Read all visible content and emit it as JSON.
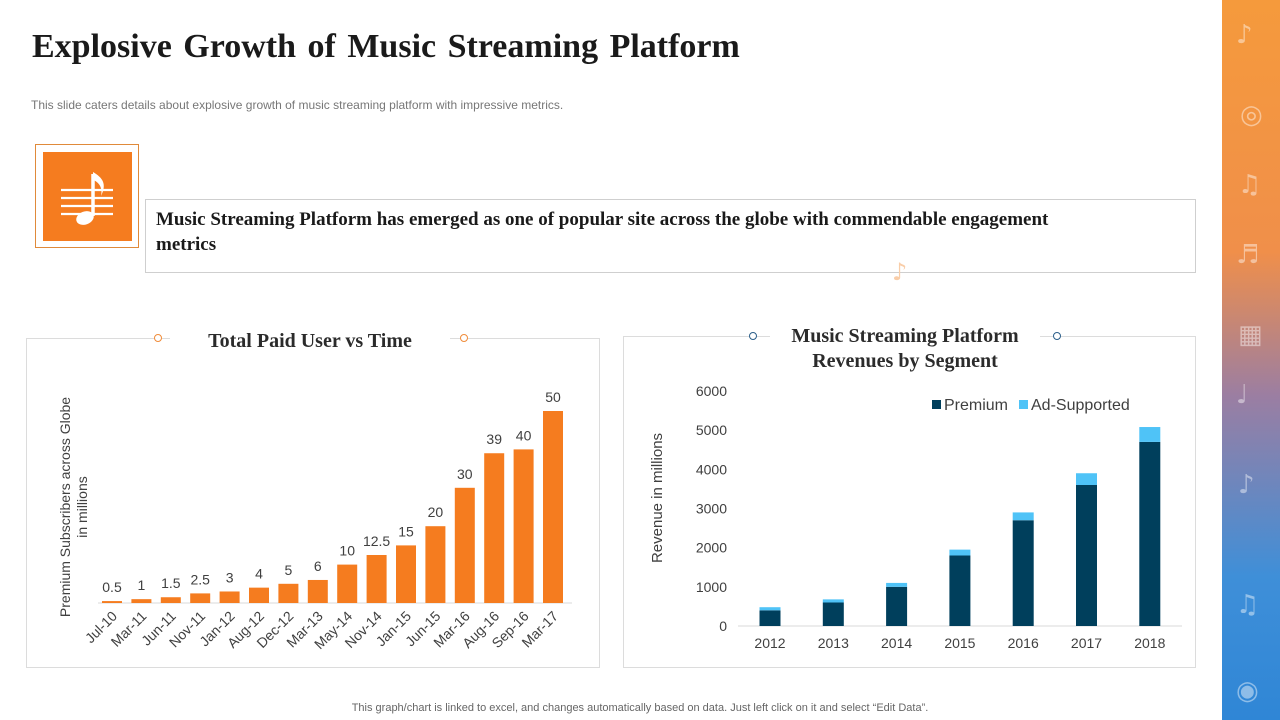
{
  "page": {
    "title": "Explosive Growth of Music Streaming Platform",
    "subtitle": "This slide caters details about explosive growth of music streaming platform with impressive metrics.",
    "highlight": "Music Streaming Platform has emerged as one of popular site across the globe with commendable engagement metrics",
    "footer": "This graph/chart is linked to excel, and changes automatically based on data. Just left click on it and select “Edit Data”."
  },
  "colors": {
    "accent": "#f57c1f",
    "bar_orange": "#f57c1f",
    "premium": "#003f5c",
    "ad_supported": "#4fc3f7",
    "side_band_top": "#f59a3c",
    "side_band_bottom": "#2f86d6"
  },
  "icons": {
    "header_icon": "music-note-icon"
  },
  "chart_data": [
    {
      "type": "bar",
      "title": "Total Paid User vs Time",
      "xlabel": "",
      "ylabel": "Premium Subscribers across Globe in millions",
      "ylabel_lines": [
        "Premium Subscribers across Globe",
        "in millions"
      ],
      "categories": [
        "Jul-10",
        "Mar-11",
        "Jun-11",
        "Nov-11",
        "Jan-12",
        "Aug-12",
        "Dec-12",
        "Mar-13",
        "May-14",
        "Nov-14",
        "Jan-15",
        "Jun-15",
        "Mar-16",
        "Aug-16",
        "Sep-16",
        "Mar-17"
      ],
      "values": [
        0.5,
        1,
        1.5,
        2.5,
        3,
        4,
        5,
        6,
        10,
        12.5,
        15,
        20,
        30,
        39,
        40,
        50
      ],
      "ylim": [
        0,
        50
      ],
      "grid": false
    },
    {
      "type": "bar",
      "stacked": true,
      "title": "Music Streaming Platform Revenues by Segment",
      "title_lines": [
        "Music Streaming Platform",
        "Revenues by Segment"
      ],
      "xlabel": "",
      "ylabel": "Revenue in millions",
      "categories": [
        "2012",
        "2013",
        "2014",
        "2015",
        "2016",
        "2017",
        "2018"
      ],
      "series": [
        {
          "name": "Premium",
          "values": [
            400,
            600,
            1000,
            1800,
            2700,
            3600,
            4700
          ]
        },
        {
          "name": "Ad-Supported",
          "values": [
            80,
            80,
            100,
            150,
            200,
            300,
            380
          ]
        }
      ],
      "ylim": [
        0,
        6000
      ],
      "yticks": [
        0,
        1000,
        2000,
        3000,
        4000,
        5000,
        6000
      ],
      "legend": "top-right",
      "grid": false
    }
  ]
}
